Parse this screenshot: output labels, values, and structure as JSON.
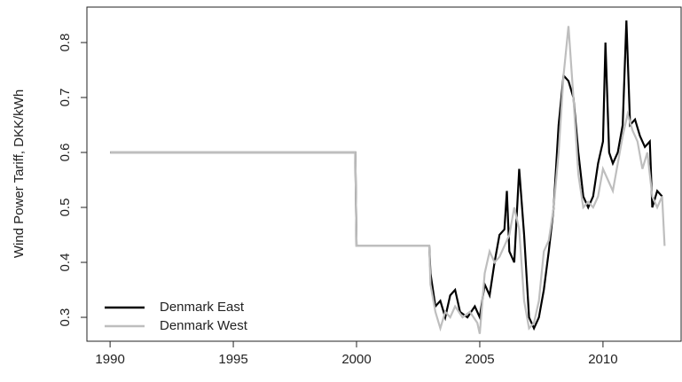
{
  "chart_data": {
    "type": "line",
    "y_label": "Wind Power Tariff, DKK/kWh",
    "xlim": [
      1989.06,
      2013.17
    ],
    "ylim": [
      0.2565,
      0.8645
    ],
    "xticks": [
      1990,
      1995,
      2000,
      2005,
      2010
    ],
    "yticks": [
      0.3,
      0.4,
      0.5,
      0.6,
      0.7,
      0.8
    ],
    "legend": "bottom-left",
    "series": [
      {
        "name": "Denmark East",
        "color": "#000000",
        "x": [
          1990,
          1999.95,
          2000,
          2002.95,
          2003.0,
          2003.2,
          2003.4,
          2003.6,
          2003.8,
          2004.0,
          2004.2,
          2004.5,
          2004.8,
          2005.0,
          2005.2,
          2005.4,
          2005.6,
          2005.8,
          2006.0,
          2006.1,
          2006.2,
          2006.4,
          2006.6,
          2006.8,
          2007.0,
          2007.2,
          2007.4,
          2007.6,
          2007.8,
          2008.0,
          2008.2,
          2008.4,
          2008.6,
          2008.8,
          2009.0,
          2009.2,
          2009.4,
          2009.6,
          2009.8,
          2010.0,
          2010.1,
          2010.25,
          2010.4,
          2010.6,
          2010.8,
          2010.95,
          2011.1,
          2011.3,
          2011.5,
          2011.7,
          2011.9,
          2012.0,
          2012.2,
          2012.4
        ],
        "values": [
          0.6,
          0.6,
          0.43,
          0.43,
          0.38,
          0.32,
          0.33,
          0.3,
          0.34,
          0.35,
          0.31,
          0.3,
          0.32,
          0.3,
          0.36,
          0.34,
          0.4,
          0.45,
          0.46,
          0.53,
          0.42,
          0.4,
          0.57,
          0.45,
          0.3,
          0.28,
          0.3,
          0.35,
          0.42,
          0.5,
          0.65,
          0.74,
          0.73,
          0.7,
          0.6,
          0.52,
          0.5,
          0.52,
          0.58,
          0.62,
          0.8,
          0.6,
          0.58,
          0.6,
          0.65,
          0.84,
          0.65,
          0.66,
          0.63,
          0.61,
          0.62,
          0.5,
          0.53,
          0.52
        ]
      },
      {
        "name": "Denmark West",
        "color": "#bebebe",
        "x": [
          1990,
          1999.95,
          2000,
          2002.95,
          2003.0,
          2003.2,
          2003.4,
          2003.6,
          2003.8,
          2004.0,
          2004.3,
          2004.6,
          2004.9,
          2005.0,
          2005.2,
          2005.4,
          2005.6,
          2005.8,
          2006.0,
          2006.2,
          2006.4,
          2006.6,
          2006.8,
          2007.0,
          2007.2,
          2007.4,
          2007.6,
          2007.8,
          2008.0,
          2008.2,
          2008.4,
          2008.6,
          2008.8,
          2009.0,
          2009.2,
          2009.4,
          2009.6,
          2009.8,
          2010.0,
          2010.2,
          2010.4,
          2010.6,
          2010.8,
          2011.0,
          2011.2,
          2011.4,
          2011.6,
          2011.8,
          2012.0,
          2012.2,
          2012.4,
          2012.5
        ],
        "values": [
          0.6,
          0.6,
          0.43,
          0.43,
          0.36,
          0.31,
          0.28,
          0.31,
          0.3,
          0.32,
          0.3,
          0.31,
          0.29,
          0.27,
          0.38,
          0.42,
          0.4,
          0.41,
          0.43,
          0.45,
          0.5,
          0.46,
          0.33,
          0.28,
          0.29,
          0.33,
          0.42,
          0.44,
          0.5,
          0.6,
          0.74,
          0.83,
          0.7,
          0.56,
          0.5,
          0.51,
          0.5,
          0.52,
          0.57,
          0.55,
          0.53,
          0.58,
          0.63,
          0.67,
          0.64,
          0.62,
          0.57,
          0.6,
          0.52,
          0.5,
          0.52,
          0.43
        ]
      }
    ]
  }
}
